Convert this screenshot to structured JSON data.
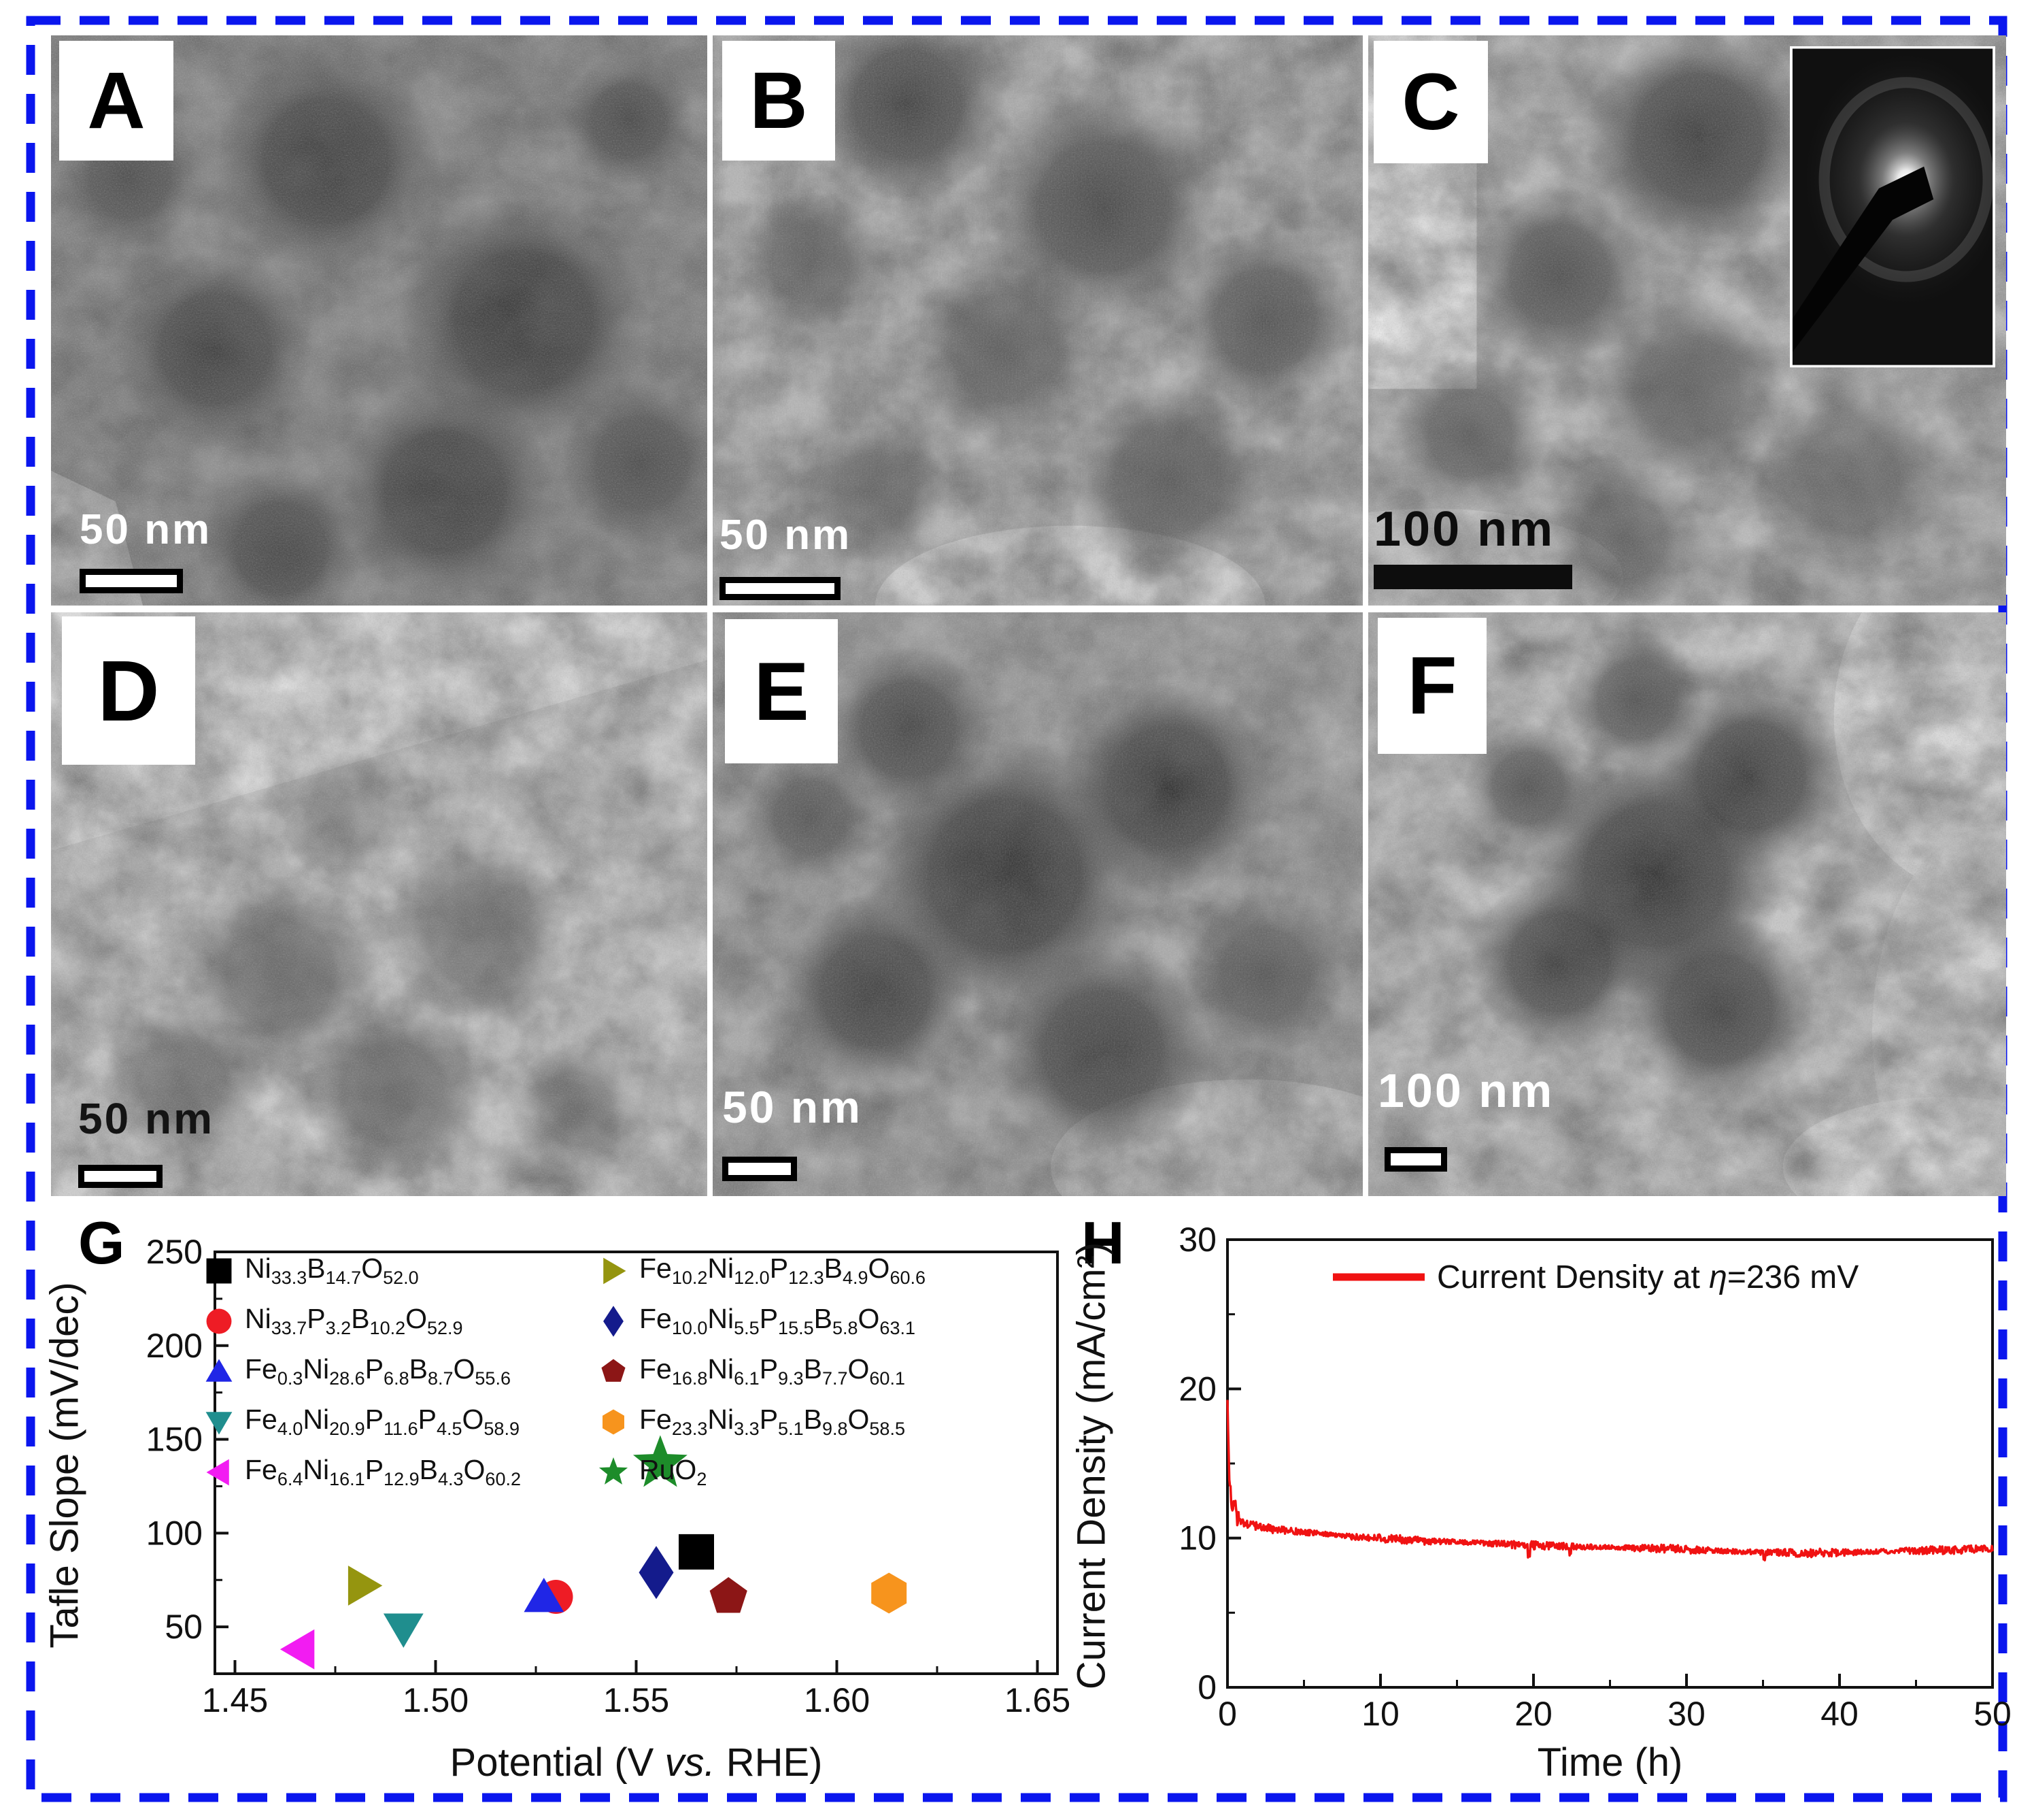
{
  "figure": {
    "background": "#ffffff",
    "border_color": "#0a16ee",
    "panels": [
      {
        "id": "A",
        "label": "A",
        "scale_label": "50 nm"
      },
      {
        "id": "B",
        "label": "B",
        "scale_label": "50 nm"
      },
      {
        "id": "C",
        "label": "C",
        "scale_label": "100 nm",
        "inset": "selected-area electron diffraction pattern"
      },
      {
        "id": "D",
        "label": "D",
        "scale_label": "50 nm"
      },
      {
        "id": "E",
        "label": "E",
        "scale_label": "50 nm"
      },
      {
        "id": "F",
        "label": "F",
        "scale_label": "100 nm"
      }
    ]
  },
  "chart_data": [
    {
      "id": "G",
      "type": "scatter",
      "panel_label": "G",
      "xlabel": "Potential (V vs. RHE)",
      "ylabel": "Tafle Slope (mV/dec)",
      "xlim": [
        1.445,
        1.655
      ],
      "ylim": [
        25,
        250
      ],
      "x_ticks": [
        "1.45",
        "1.50",
        "1.55",
        "1.60",
        "1.65"
      ],
      "x_tick_values": [
        1.45,
        1.5,
        1.55,
        1.6,
        1.65
      ],
      "x_minor_ticks": [
        1.475,
        1.525,
        1.575,
        1.625
      ],
      "y_ticks": [
        50,
        100,
        150,
        200,
        250
      ],
      "y_minor_ticks": [
        75,
        125,
        175,
        225
      ],
      "grid": false,
      "legend_position": "inside top, two columns",
      "series": [
        {
          "name": "Ni33.3B14.7O52.0",
          "marker": "square",
          "color": "#000000",
          "x": 1.565,
          "y": 90
        },
        {
          "name": "Ni33.7P3.2B10.2O52.9",
          "marker": "circle",
          "color": "#ee1c25",
          "x": 1.53,
          "y": 66
        },
        {
          "name": "Fe0.3Ni28.6P6.8B8.7O55.6",
          "marker": "triangle-up",
          "color": "#2026e6",
          "x": 1.527,
          "y": 66
        },
        {
          "name": "Fe4.0Ni20.9P11.6P4.5O58.9",
          "marker": "triangle-down",
          "color": "#1f8e8e",
          "x": 1.492,
          "y": 49
        },
        {
          "name": "Fe6.4Ni16.1P12.9B4.3O60.2",
          "marker": "triangle-left",
          "color": "#f21cf2",
          "x": 1.466,
          "y": 38
        },
        {
          "name": "Fe10.2Ni12.0P12.3B4.9O60.6",
          "marker": "triangle-right",
          "color": "#95950f",
          "x": 1.482,
          "y": 72
        },
        {
          "name": "Fe10.0Ni5.5P15.5B5.8O63.1",
          "marker": "diamond",
          "color": "#141b8c",
          "x": 1.555,
          "y": 79
        },
        {
          "name": "Fe16.8Ni6.1P9.3B7.7O60.1",
          "marker": "pentagon",
          "color": "#8c1616",
          "x": 1.573,
          "y": 66
        },
        {
          "name": "Fe23.3Ni3.3P5.1B9.8O58.5",
          "marker": "hexagon",
          "color": "#f7941d",
          "x": 1.613,
          "y": 68
        },
        {
          "name": "RuO2",
          "marker": "star",
          "color": "#1d8c2a",
          "x": 1.556,
          "y": 137
        }
      ],
      "legend_columns": [
        [
          0,
          1,
          2,
          3,
          4
        ],
        [
          5,
          6,
          7,
          8,
          9
        ]
      ]
    },
    {
      "id": "H",
      "type": "line",
      "panel_label": "H",
      "xlabel": "Time (h)",
      "ylabel": "Current Density (mA/cm²)",
      "legend_label": "Current Density at η=236 mV",
      "line_color": "#f01212",
      "xlim": [
        0,
        50
      ],
      "ylim": [
        0,
        30
      ],
      "x_ticks": [
        0,
        10,
        20,
        30,
        40,
        50
      ],
      "x_minor_ticks": [
        5,
        15,
        25,
        35,
        45
      ],
      "y_ticks": [
        0,
        10,
        20,
        30
      ],
      "y_minor_ticks": [
        5,
        15,
        25
      ],
      "grid": false,
      "x": [
        0,
        0.1,
        0.3,
        0.6,
        1,
        2,
        3,
        5,
        8,
        10,
        13,
        16,
        20,
        24,
        28,
        32,
        35,
        38,
        41,
        44,
        47,
        50
      ],
      "y": [
        19.5,
        14.2,
        12.2,
        11.4,
        11.0,
        10.8,
        10.6,
        10.4,
        10.1,
        10.0,
        9.8,
        9.7,
        9.5,
        9.4,
        9.3,
        9.15,
        9.05,
        9.0,
        9.05,
        9.15,
        9.2,
        9.3
      ],
      "noise_amplitude": 0.22
    }
  ]
}
